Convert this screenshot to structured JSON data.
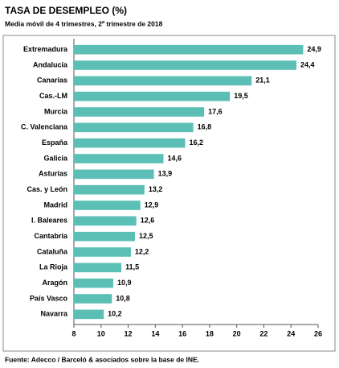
{
  "chart_data": {
    "type": "bar",
    "orientation": "horizontal",
    "title": "TASA DE DESEMPLEO (%)",
    "subtitle": "Media móvil de 4 trimestres, 2º trimestre de 2018",
    "source": "Fuente: Adecco / Barceló & asociados sobre la base de INE.",
    "categories": [
      "Extremadura",
      "Andalucía",
      "Canarias",
      "Cas.-LM",
      "Murcia",
      "C. Valenciana",
      "España",
      "Galicia",
      "Asturias",
      "Cas. y León",
      "Madrid",
      "I. Baleares",
      "Cantabria",
      "Cataluña",
      "La Rioja",
      "Aragón",
      "País Vasco",
      "Navarra"
    ],
    "values": [
      24.9,
      24.4,
      21.1,
      19.5,
      17.6,
      16.8,
      16.2,
      14.6,
      13.9,
      13.2,
      12.9,
      12.6,
      12.5,
      12.2,
      11.5,
      10.9,
      10.8,
      10.2
    ],
    "value_labels": [
      "24,9",
      "24,4",
      "21,1",
      "19,5",
      "17,6",
      "16,8",
      "16,2",
      "14,6",
      "13,9",
      "13,2",
      "12,9",
      "12,6",
      "12,5",
      "12,2",
      "11,5",
      "10,9",
      "10,8",
      "10,2"
    ],
    "color": "#5bbfb5",
    "xlim": [
      8,
      26
    ],
    "xticks": [
      8,
      10,
      12,
      14,
      16,
      18,
      20,
      22,
      24,
      26
    ],
    "grid": false
  }
}
